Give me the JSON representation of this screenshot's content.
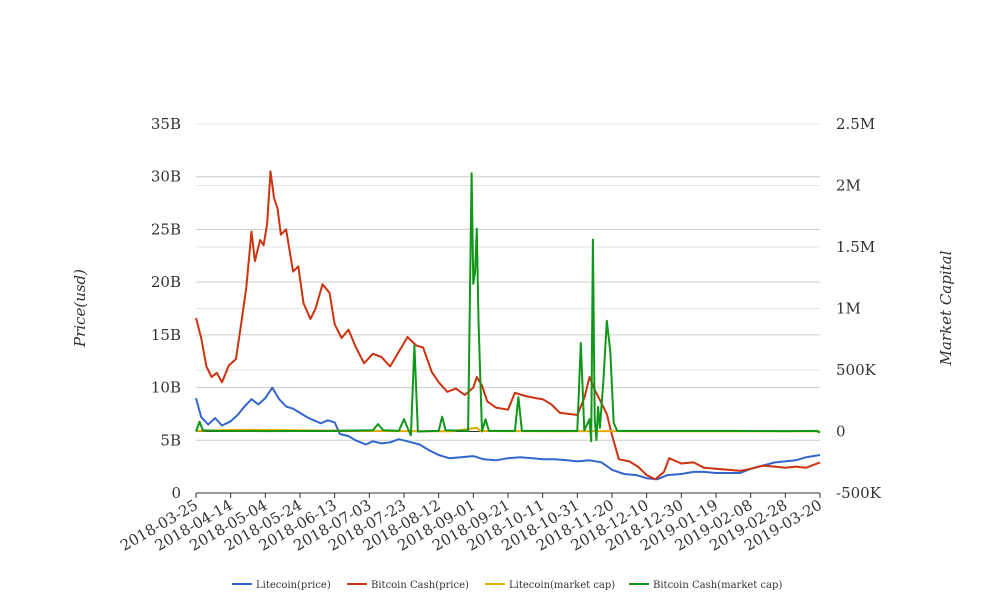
{
  "chart_data": {
    "type": "line",
    "title": "",
    "ylabel_left": "Price(usd)",
    "ylabel_right": "Market Capital",
    "y_left": {
      "min": 0,
      "max": 35000000000,
      "ticks": [
        0,
        5000000000,
        10000000000,
        15000000000,
        20000000000,
        25000000000,
        30000000000,
        35000000000
      ],
      "tick_labels": [
        "0",
        "5B",
        "10B",
        "15B",
        "20B",
        "25B",
        "30B",
        "35B"
      ]
    },
    "y_right": {
      "min": -500000,
      "max": 2500000,
      "ticks": [
        -500000,
        0,
        500000,
        1000000,
        1500000,
        2000000,
        2500000
      ],
      "tick_labels": [
        "-500K",
        "0",
        "500K",
        "1M",
        "1.5M",
        "2M",
        "2.5M"
      ]
    },
    "x": {
      "start": "2018-03-25",
      "end": "2019-03-20",
      "ticks": [
        "2018-03-25",
        "2018-04-14",
        "2018-05-04",
        "2018-05-24",
        "2018-06-13",
        "2018-07-03",
        "2018-07-23",
        "2018-08-12",
        "2018-09-01",
        "2018-09-21",
        "2018-10-11",
        "2018-10-31",
        "2018-11-20",
        "2018-12-10",
        "2018-12-30",
        "2019-01-19",
        "2019-02-08",
        "2019-02-28",
        "2019-03-20"
      ]
    },
    "grid": true,
    "legend_position": "bottom",
    "series": [
      {
        "name": "Litecoin(price)",
        "axis": "left",
        "color": "#3366cc",
        "points": [
          [
            "2018-03-25",
            9000000000.0
          ],
          [
            "2018-03-28",
            7200000000.0
          ],
          [
            "2018-04-01",
            6500000000.0
          ],
          [
            "2018-04-05",
            7100000000.0
          ],
          [
            "2018-04-09",
            6400000000.0
          ],
          [
            "2018-04-14",
            6800000000.0
          ],
          [
            "2018-04-18",
            7400000000.0
          ],
          [
            "2018-04-22",
            8200000000.0
          ],
          [
            "2018-04-26",
            8900000000.0
          ],
          [
            "2018-04-30",
            8400000000.0
          ],
          [
            "2018-05-04",
            9000000000.0
          ],
          [
            "2018-05-08",
            10000000000.0
          ],
          [
            "2018-05-12",
            8900000000.0
          ],
          [
            "2018-05-16",
            8200000000.0
          ],
          [
            "2018-05-20",
            8000000000.0
          ],
          [
            "2018-05-24",
            7600000000.0
          ],
          [
            "2018-05-28",
            7200000000.0
          ],
          [
            "2018-06-01",
            6900000000.0
          ],
          [
            "2018-06-05",
            6600000000.0
          ],
          [
            "2018-06-09",
            6900000000.0
          ],
          [
            "2018-06-13",
            6700000000.0
          ],
          [
            "2018-06-16",
            5600000000.0
          ],
          [
            "2018-06-21",
            5400000000.0
          ],
          [
            "2018-06-25",
            5000000000.0
          ],
          [
            "2018-07-01",
            4600000000.0
          ],
          [
            "2018-07-05",
            4900000000.0
          ],
          [
            "2018-07-10",
            4700000000.0
          ],
          [
            "2018-07-15",
            4800000000.0
          ],
          [
            "2018-07-20",
            5100000000.0
          ],
          [
            "2018-07-25",
            4900000000.0
          ],
          [
            "2018-08-01",
            4600000000.0
          ],
          [
            "2018-08-06",
            4100000000.0
          ],
          [
            "2018-08-12",
            3600000000.0
          ],
          [
            "2018-08-18",
            3300000000.0
          ],
          [
            "2018-08-25",
            3400000000.0
          ],
          [
            "2018-09-01",
            3500000000.0
          ],
          [
            "2018-09-07",
            3200000000.0
          ],
          [
            "2018-09-14",
            3100000000.0
          ],
          [
            "2018-09-21",
            3300000000.0
          ],
          [
            "2018-09-28",
            3400000000.0
          ],
          [
            "2018-10-05",
            3300000000.0
          ],
          [
            "2018-10-11",
            3200000000.0
          ],
          [
            "2018-10-18",
            3200000000.0
          ],
          [
            "2018-10-25",
            3100000000.0
          ],
          [
            "2018-10-31",
            3000000000.0
          ],
          [
            "2018-11-07",
            3100000000.0
          ],
          [
            "2018-11-14",
            2900000000.0
          ],
          [
            "2018-11-20",
            2200000000.0
          ],
          [
            "2018-11-27",
            1800000000.0
          ],
          [
            "2018-12-04",
            1700000000.0
          ],
          [
            "2018-12-10",
            1400000000.0
          ],
          [
            "2018-12-16",
            1300000000.0
          ],
          [
            "2018-12-22",
            1700000000.0
          ],
          [
            "2018-12-30",
            1800000000.0
          ],
          [
            "2019-01-06",
            2000000000.0
          ],
          [
            "2019-01-12",
            2000000000.0
          ],
          [
            "2019-01-19",
            1900000000.0
          ],
          [
            "2019-01-26",
            1900000000.0
          ],
          [
            "2019-02-02",
            1900000000.0
          ],
          [
            "2019-02-08",
            2300000000.0
          ],
          [
            "2019-02-15",
            2600000000.0
          ],
          [
            "2019-02-22",
            2900000000.0
          ],
          [
            "2019-02-28",
            3000000000.0
          ],
          [
            "2019-03-06",
            3100000000.0
          ],
          [
            "2019-03-12",
            3400000000.0
          ],
          [
            "2019-03-20",
            3600000000.0
          ]
        ]
      },
      {
        "name": "Bitcoin Cash(price)",
        "axis": "left",
        "color": "#cc3311",
        "points": [
          [
            "2018-03-25",
            16600000000.0
          ],
          [
            "2018-03-28",
            14700000000.0
          ],
          [
            "2018-03-31",
            12000000000.0
          ],
          [
            "2018-04-03",
            11000000000.0
          ],
          [
            "2018-04-06",
            11400000000.0
          ],
          [
            "2018-04-09",
            10500000000.0
          ],
          [
            "2018-04-13",
            12100000000.0
          ],
          [
            "2018-04-17",
            12700000000.0
          ],
          [
            "2018-04-20",
            16000000000.0
          ],
          [
            "2018-04-23",
            19500000000.0
          ],
          [
            "2018-04-26",
            24800000000.0
          ],
          [
            "2018-04-28",
            22000000000.0
          ],
          [
            "2018-05-01",
            24000000000.0
          ],
          [
            "2018-05-03",
            23500000000.0
          ],
          [
            "2018-05-05",
            25500000000.0
          ],
          [
            "2018-05-07",
            30500000000.0
          ],
          [
            "2018-05-09",
            28000000000.0
          ],
          [
            "2018-05-11",
            27000000000.0
          ],
          [
            "2018-05-13",
            24500000000.0
          ],
          [
            "2018-05-16",
            25000000000.0
          ],
          [
            "2018-05-20",
            21000000000.0
          ],
          [
            "2018-05-23",
            21500000000.0
          ],
          [
            "2018-05-26",
            18000000000.0
          ],
          [
            "2018-05-30",
            16500000000.0
          ],
          [
            "2018-06-02",
            17500000000.0
          ],
          [
            "2018-06-06",
            19800000000.0
          ],
          [
            "2018-06-10",
            19000000000.0
          ],
          [
            "2018-06-13",
            16000000000.0
          ],
          [
            "2018-06-17",
            14700000000.0
          ],
          [
            "2018-06-21",
            15500000000.0
          ],
          [
            "2018-06-25",
            13900000000.0
          ],
          [
            "2018-06-30",
            12300000000.0
          ],
          [
            "2018-07-05",
            13200000000.0
          ],
          [
            "2018-07-10",
            12900000000.0
          ],
          [
            "2018-07-15",
            12000000000.0
          ],
          [
            "2018-07-20",
            13400000000.0
          ],
          [
            "2018-07-25",
            14800000000.0
          ],
          [
            "2018-07-30",
            14000000000.0
          ],
          [
            "2018-08-03",
            13800000000.0
          ],
          [
            "2018-08-08",
            11500000000.0
          ],
          [
            "2018-08-12",
            10500000000.0
          ],
          [
            "2018-08-17",
            9600000000.0
          ],
          [
            "2018-08-22",
            9900000000.0
          ],
          [
            "2018-08-27",
            9300000000.0
          ],
          [
            "2018-09-01",
            10000000000.0
          ],
          [
            "2018-09-03",
            11000000000.0
          ],
          [
            "2018-09-06",
            10200000000.0
          ],
          [
            "2018-09-09",
            8700000000.0
          ],
          [
            "2018-09-14",
            8100000000.0
          ],
          [
            "2018-09-21",
            7900000000.0
          ],
          [
            "2018-09-25",
            9500000000.0
          ],
          [
            "2018-10-01",
            9200000000.0
          ],
          [
            "2018-10-07",
            9000000000.0
          ],
          [
            "2018-10-11",
            8900000000.0
          ],
          [
            "2018-10-16",
            8400000000.0
          ],
          [
            "2018-10-21",
            7600000000.0
          ],
          [
            "2018-10-26",
            7500000000.0
          ],
          [
            "2018-10-31",
            7400000000.0
          ],
          [
            "2018-11-04",
            9000000000.0
          ],
          [
            "2018-11-07",
            11000000000.0
          ],
          [
            "2018-11-10",
            9800000000.0
          ],
          [
            "2018-11-14",
            8500000000.0
          ],
          [
            "2018-11-17",
            7500000000.0
          ],
          [
            "2018-11-20",
            5500000000.0
          ],
          [
            "2018-11-24",
            3200000000.0
          ],
          [
            "2018-11-30",
            3000000000.0
          ],
          [
            "2018-12-05",
            2500000000.0
          ],
          [
            "2018-12-10",
            1700000000.0
          ],
          [
            "2018-12-15",
            1300000000.0
          ],
          [
            "2018-12-20",
            2000000000.0
          ],
          [
            "2018-12-23",
            3300000000.0
          ],
          [
            "2018-12-30",
            2800000000.0
          ],
          [
            "2019-01-06",
            2900000000.0
          ],
          [
            "2019-01-12",
            2400000000.0
          ],
          [
            "2019-01-19",
            2300000000.0
          ],
          [
            "2019-01-26",
            2200000000.0
          ],
          [
            "2019-02-02",
            2100000000.0
          ],
          [
            "2019-02-08",
            2300000000.0
          ],
          [
            "2019-02-15",
            2600000000.0
          ],
          [
            "2019-02-22",
            2500000000.0
          ],
          [
            "2019-02-28",
            2400000000.0
          ],
          [
            "2019-03-06",
            2500000000.0
          ],
          [
            "2019-03-12",
            2400000000.0
          ],
          [
            "2019-03-20",
            2900000000.0
          ]
        ]
      },
      {
        "name": "Litecoin(market cap)",
        "axis": "right",
        "color": "#e6a800",
        "points": [
          [
            "2018-03-25",
            5000
          ],
          [
            "2018-04-20",
            15000
          ],
          [
            "2018-05-20",
            10000
          ],
          [
            "2018-06-20",
            5000
          ],
          [
            "2018-07-20",
            3000
          ],
          [
            "2018-08-20",
            2000
          ],
          [
            "2018-09-03",
            30000
          ],
          [
            "2018-09-05",
            4000
          ],
          [
            "2018-10-20",
            2000
          ],
          [
            "2018-11-20",
            3000
          ],
          [
            "2018-12-20",
            2000
          ],
          [
            "2019-01-20",
            2000
          ],
          [
            "2019-02-20",
            2000
          ],
          [
            "2019-03-20",
            2000
          ]
        ]
      },
      {
        "name": "Bitcoin Cash(market cap)",
        "axis": "right",
        "color": "#109618",
        "points": [
          [
            "2018-03-25",
            0
          ],
          [
            "2018-03-27",
            80000
          ],
          [
            "2018-03-29",
            10000
          ],
          [
            "2018-04-05",
            5000
          ],
          [
            "2018-05-04",
            3000
          ],
          [
            "2018-06-10",
            5000
          ],
          [
            "2018-07-05",
            10000
          ],
          [
            "2018-07-08",
            60000
          ],
          [
            "2018-07-11",
            10000
          ],
          [
            "2018-07-20",
            5000
          ],
          [
            "2018-07-23",
            100000
          ],
          [
            "2018-07-25",
            30000
          ],
          [
            "2018-07-27",
            -30000
          ],
          [
            "2018-07-29",
            700000
          ],
          [
            "2018-07-31",
            0
          ],
          [
            "2018-08-12",
            5000
          ],
          [
            "2018-08-14",
            120000
          ],
          [
            "2018-08-16",
            10000
          ],
          [
            "2018-08-29",
            5000
          ],
          [
            "2018-08-31",
            2100000
          ],
          [
            "2018-09-01",
            1200000
          ],
          [
            "2018-09-02",
            1300000
          ],
          [
            "2018-09-03",
            1650000
          ],
          [
            "2018-09-04",
            900000
          ],
          [
            "2018-09-06",
            0
          ],
          [
            "2018-09-08",
            100000
          ],
          [
            "2018-09-10",
            5000
          ],
          [
            "2018-09-25",
            5000
          ],
          [
            "2018-09-27",
            280000
          ],
          [
            "2018-09-29",
            5000
          ],
          [
            "2018-10-31",
            5000
          ],
          [
            "2018-11-02",
            720000
          ],
          [
            "2018-11-04",
            10000
          ],
          [
            "2018-11-07",
            100000
          ],
          [
            "2018-11-08",
            -80000
          ],
          [
            "2018-11-09",
            1560000
          ],
          [
            "2018-11-10",
            100000
          ],
          [
            "2018-11-11",
            -70000
          ],
          [
            "2018-11-12",
            200000
          ],
          [
            "2018-11-13",
            30000
          ],
          [
            "2018-11-15",
            400000
          ],
          [
            "2018-11-17",
            900000
          ],
          [
            "2018-11-19",
            650000
          ],
          [
            "2018-11-21",
            70000
          ],
          [
            "2018-11-23",
            5000
          ],
          [
            "2019-01-19",
            5000
          ],
          [
            "2019-02-28",
            3000
          ],
          [
            "2019-03-18",
            5000
          ],
          [
            "2019-03-20",
            -10000
          ]
        ]
      }
    ]
  }
}
